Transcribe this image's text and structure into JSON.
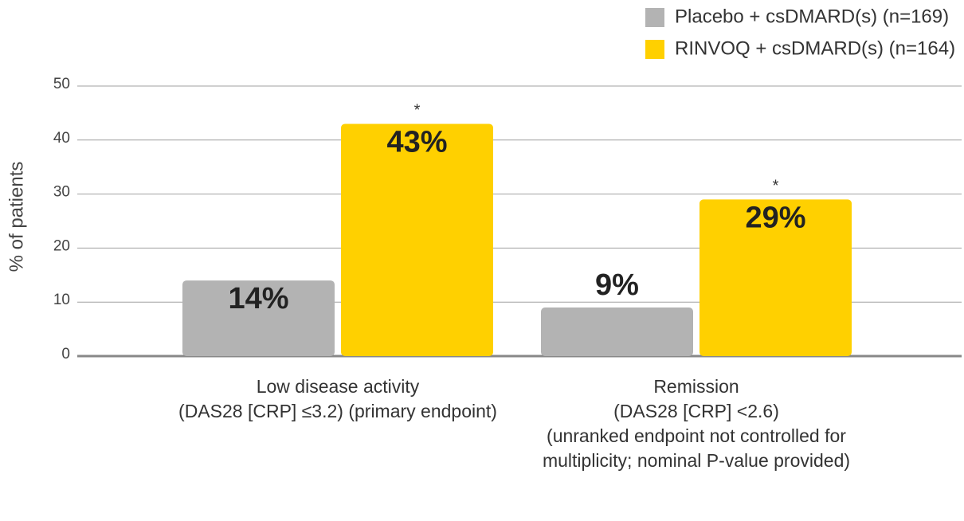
{
  "chart_data": {
    "type": "bar",
    "y_label": "% of patients",
    "categories": [
      [
        "Low disease activity",
        "(DAS28 [CRP] ≤3.2) (primary endpoint)"
      ],
      [
        "Remission",
        "(DAS28 [CRP] <2.6)",
        "(unranked endpoint not controlled for",
        "multiplicity; nominal P-value provided)"
      ]
    ],
    "series": [
      {
        "name": "Placebo + csDMARD(s) (n=169)",
        "color": "#b3b3b3",
        "values": [
          14,
          9
        ],
        "value_labels": [
          "14%",
          "9%"
        ]
      },
      {
        "name": "RINVOQ + csDMARD(s) (n=164)",
        "color": "#ffd000",
        "values": [
          43,
          29
        ],
        "value_labels": [
          "43%",
          "29%"
        ],
        "markers": [
          "*",
          "*"
        ]
      }
    ],
    "ylim": [
      0,
      50
    ],
    "yticks": [
      0,
      10,
      20,
      30,
      40,
      50
    ],
    "grid": true,
    "legend": "top-right"
  }
}
